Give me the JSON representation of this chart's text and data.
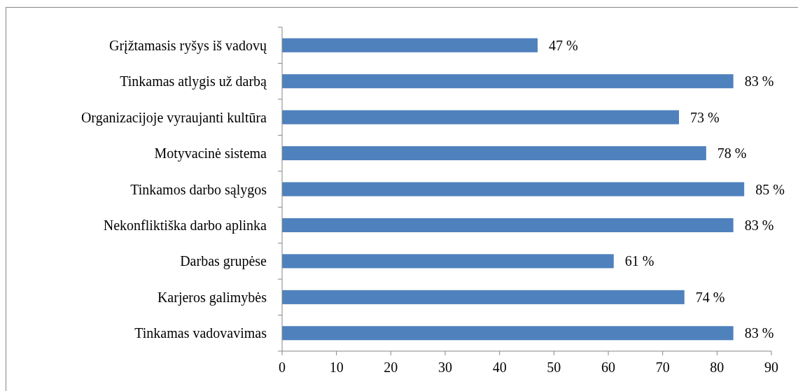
{
  "chart_data": {
    "type": "bar",
    "orientation": "horizontal",
    "categories": [
      "Grįžtamasis ryšys iš vadovų",
      "Tinkamas atlygis už darbą",
      "Organizacijoje vyraujanti kultūra",
      "Motyvacinė sistema",
      "Tinkamos darbo sąlygos",
      "Nekonfliktiška darbo aplinka",
      "Darbas grupėse",
      "Karjeros galimybės",
      "Tinkamas vadovavimas"
    ],
    "values": [
      47,
      83,
      73,
      78,
      85,
      83,
      61,
      74,
      83
    ],
    "value_labels": [
      "47 %",
      "83 %",
      "73 %",
      "78 %",
      "85 %",
      "83 %",
      "61 %",
      "74 %",
      "83 %"
    ],
    "color": "#4f81bd",
    "xlim": [
      0,
      90
    ],
    "xticks": [
      0,
      10,
      20,
      30,
      40,
      50,
      60,
      70,
      80,
      90
    ],
    "grid": false
  }
}
